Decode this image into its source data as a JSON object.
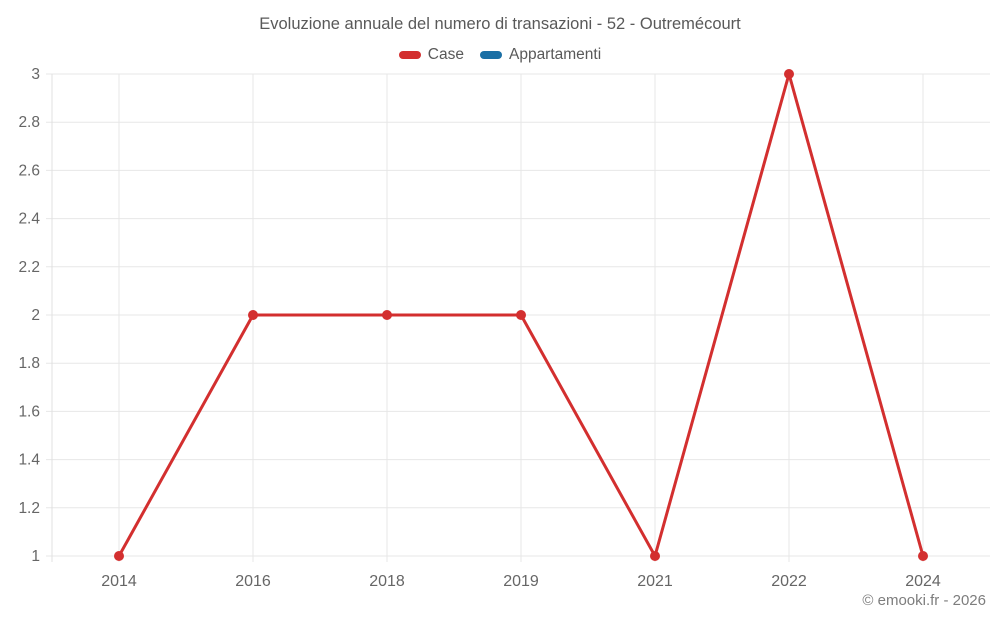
{
  "title": "Evoluzione annuale del numero di transazioni - 52 - Outremécourt",
  "footer": "© emooki.fr - 2026",
  "legend": [
    {
      "label": "Case",
      "color": "#d32f2f"
    },
    {
      "label": "Appartamenti",
      "color": "#1a6fa5"
    }
  ],
  "chart_data": {
    "type": "line",
    "title": "Evoluzione annuale del numero di transazioni - 52 - Outremécourt",
    "categories": [
      "2014",
      "2016",
      "2018",
      "2019",
      "2021",
      "2022",
      "2024"
    ],
    "series": [
      {
        "name": "Case",
        "color": "#d32f2f",
        "values": [
          1,
          2,
          2,
          2,
          1,
          3,
          1
        ]
      },
      {
        "name": "Appartamenti",
        "color": "#1a6fa5",
        "values": []
      }
    ],
    "xlabel": "",
    "ylabel": "",
    "ylim": [
      1,
      3
    ],
    "ytick_step": 0.2,
    "grid": true,
    "legend_position": "top",
    "annotation": "© emooki.fr - 2026"
  }
}
